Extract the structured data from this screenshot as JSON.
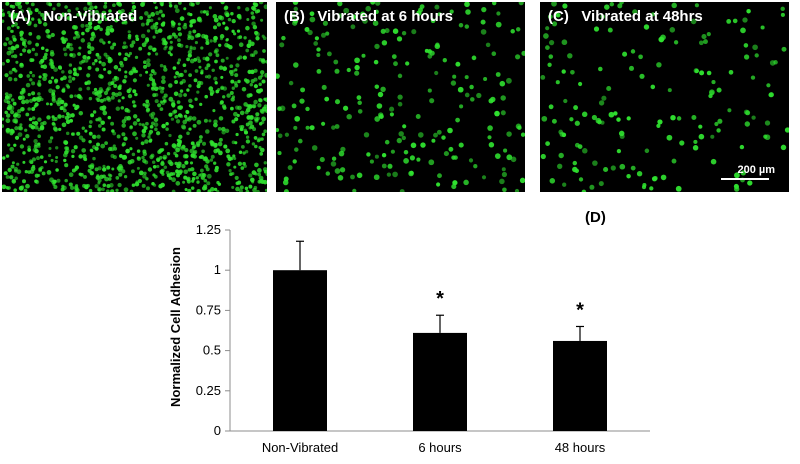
{
  "panels": [
    {
      "id": "A",
      "title": "(A)   Non-Vibrated",
      "density": 1,
      "scale_bar": ""
    },
    {
      "id": "B",
      "title": "(B)   Vibrated at 6 hours",
      "density": 0.6,
      "scale_bar": ""
    },
    {
      "id": "C",
      "title": "(C)   Vibrated at 48hrs",
      "density": 0.55,
      "scale_bar": "200 µm"
    }
  ],
  "colors": {
    "cell": "#2fe02f",
    "bar": "#000000",
    "axis": "#8c8c8c"
  },
  "chart_data": {
    "type": "bar",
    "panel_label": "(D)",
    "categories": [
      "Non-Vibrated",
      "6 hours",
      "48 hours"
    ],
    "values": [
      1.0,
      0.61,
      0.56
    ],
    "errors": [
      0.18,
      0.11,
      0.09
    ],
    "significance": [
      "",
      "*",
      "*"
    ],
    "ylabel": "Normalized Cell Adhesion",
    "xlabel": "",
    "ylim": [
      0,
      1.25
    ],
    "yticks": [
      "0",
      "0.25",
      "0.5",
      "0.75",
      "1",
      "1.25"
    ],
    "ytick_values": [
      0,
      0.25,
      0.5,
      0.75,
      1,
      1.25
    ],
    "grid": false,
    "legend": "none"
  }
}
